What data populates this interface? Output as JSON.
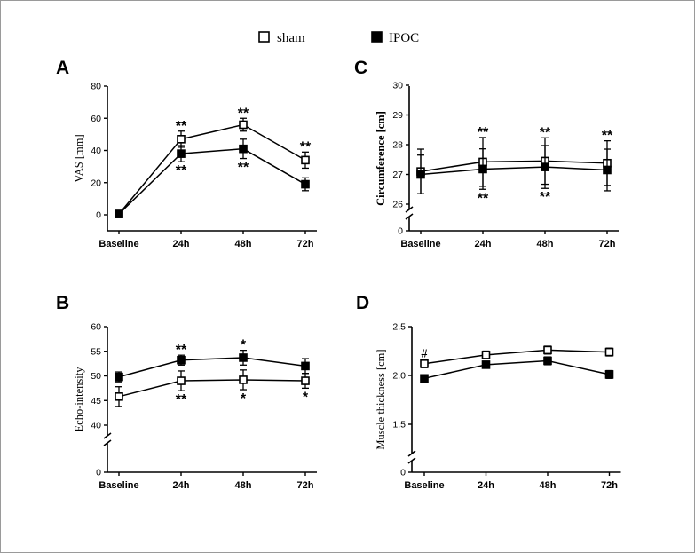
{
  "legend": {
    "entries": [
      {
        "name": "sham",
        "marker": "open-square"
      },
      {
        "name": "IPOC",
        "marker": "filled-square"
      }
    ]
  },
  "colors": {
    "ink": "#000000",
    "open_fill": "#ffffff"
  },
  "chart_data": [
    {
      "panel": "A",
      "type": "line",
      "categories": [
        "Baseline",
        "24h",
        "48h",
        "72h"
      ],
      "ylabel": "VAS [mm]",
      "ylabel_bold": false,
      "ylim": [
        -10,
        80
      ],
      "yticks": [
        0,
        20,
        40,
        60,
        80
      ],
      "axis_break": false,
      "grid": false,
      "series": [
        {
          "name": "sham",
          "values": [
            0.5,
            47,
            56,
            34
          ],
          "errors": [
            1,
            5,
            4,
            5
          ]
        },
        {
          "name": "IPOC",
          "values": [
            0.5,
            38,
            41,
            19
          ],
          "errors": [
            1,
            5,
            6,
            4
          ]
        }
      ],
      "annotations": {
        "above": [
          "",
          "**",
          "**",
          "**"
        ],
        "below": [
          "",
          "**",
          "**",
          ""
        ]
      }
    },
    {
      "panel": "B",
      "type": "line",
      "categories": [
        "Baseline",
        "24h",
        "48h",
        "72h"
      ],
      "ylabel": "Echo-intensity",
      "ylabel_bold": false,
      "ylim": [
        0,
        60
      ],
      "yticks": [
        0,
        40,
        45,
        50,
        55,
        60
      ],
      "axis_break": true,
      "grid": false,
      "series": [
        {
          "name": "sham",
          "values": [
            45.8,
            49,
            49.2,
            49
          ],
          "errors": [
            2,
            2,
            2,
            1.5
          ]
        },
        {
          "name": "IPOC",
          "values": [
            49.8,
            53.2,
            53.7,
            52
          ],
          "errors": [
            1,
            1,
            1.5,
            1.5
          ]
        }
      ],
      "annotations": {
        "above": [
          "",
          "**",
          "*",
          ""
        ],
        "below": [
          "",
          "**",
          "*",
          "*"
        ]
      }
    },
    {
      "panel": "C",
      "type": "line",
      "categories": [
        "Baseline",
        "24h",
        "48h",
        "72h"
      ],
      "ylabel": "Circumference [cm]",
      "ylabel_bold": true,
      "ylim": [
        0,
        30
      ],
      "yticks": [
        0,
        26,
        27,
        28,
        29,
        30
      ],
      "axis_break": true,
      "grid": false,
      "series": [
        {
          "name": "sham",
          "values": [
            27.1,
            27.42,
            27.45,
            27.38
          ],
          "errors": [
            0.75,
            0.82,
            0.78,
            0.75
          ]
        },
        {
          "name": "IPOC",
          "values": [
            27.0,
            27.18,
            27.25,
            27.15
          ],
          "errors": [
            0.65,
            0.68,
            0.72,
            0.7
          ]
        }
      ],
      "annotations": {
        "above": [
          "",
          "**",
          "**",
          "**"
        ],
        "below": [
          "",
          "**",
          "**",
          ""
        ]
      }
    },
    {
      "panel": "D",
      "type": "line",
      "categories": [
        "Baseline",
        "24h",
        "48h",
        "72h"
      ],
      "ylabel": "Muscle thickness [cm]",
      "ylabel_bold": false,
      "ylim": [
        0,
        2.5
      ],
      "yticks": [
        0,
        1.5,
        2.0,
        2.5
      ],
      "axis_break": true,
      "grid": false,
      "series": [
        {
          "name": "sham",
          "values": [
            2.12,
            2.21,
            2.26,
            2.24
          ],
          "errors": [
            0.04,
            0.04,
            0.04,
            0.04
          ]
        },
        {
          "name": "IPOC",
          "values": [
            1.97,
            2.11,
            2.15,
            2.01
          ],
          "errors": [
            0.03,
            0.03,
            0.04,
            0.04
          ]
        }
      ],
      "annotations": {
        "above": [
          "#",
          "",
          "",
          ""
        ],
        "below": [
          "",
          "",
          "",
          ""
        ]
      }
    }
  ]
}
